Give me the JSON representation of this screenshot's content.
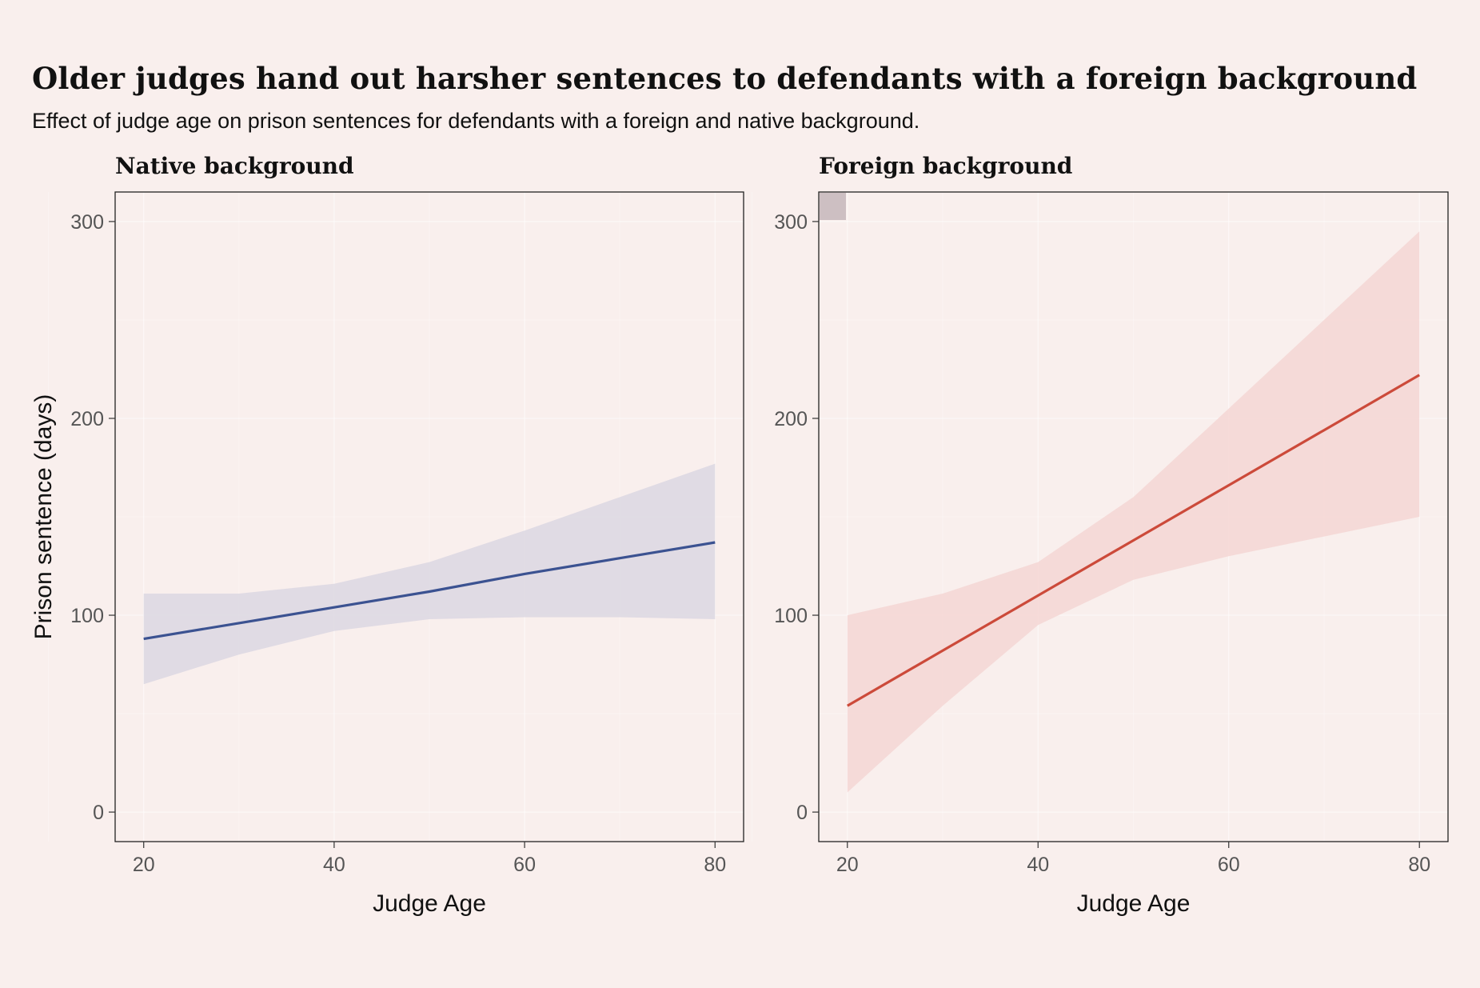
{
  "title": "Older judges hand out harsher sentences to defendants with a foreign background",
  "subtitle": "Effect of judge age on prison sentences for defendants with a foreign and native background.",
  "colors": {
    "background": "#f9efed",
    "native_line": "#3b5291",
    "native_band": "#dcd7e2",
    "foreign_line": "#cc4a3a",
    "foreign_band": "#f4d6d3"
  },
  "chart_data": [
    {
      "type": "line",
      "title": "Native background",
      "xlabel": "Judge Age",
      "ylabel": "Prison sentence (days)",
      "xlim": [
        17,
        83
      ],
      "ylim": [
        -15,
        315
      ],
      "x_ticks": [
        20,
        40,
        60,
        80
      ],
      "y_ticks": [
        0,
        100,
        200,
        300
      ],
      "grid": true,
      "series": [
        {
          "x": [
            20,
            30,
            40,
            50,
            60,
            70,
            80
          ],
          "y": [
            88,
            96,
            104,
            112,
            121,
            129,
            137
          ],
          "lower": [
            65,
            80,
            92,
            98,
            99,
            99,
            98
          ],
          "upper": [
            111,
            111,
            116,
            127,
            143,
            160,
            177
          ]
        }
      ]
    },
    {
      "type": "line",
      "title": "Foreign background",
      "xlabel": "Judge Age",
      "ylabel": "",
      "xlim": [
        17,
        83
      ],
      "ylim": [
        -15,
        315
      ],
      "x_ticks": [
        20,
        40,
        60,
        80
      ],
      "y_ticks": [
        0,
        100,
        200,
        300
      ],
      "grid": true,
      "series": [
        {
          "x": [
            20,
            30,
            40,
            50,
            60,
            70,
            80
          ],
          "y": [
            54,
            82,
            110,
            138,
            166,
            194,
            222
          ],
          "lower": [
            10,
            54,
            95,
            118,
            130,
            140,
            150
          ],
          "upper": [
            100,
            111,
            127,
            160,
            205,
            250,
            295
          ]
        }
      ]
    }
  ]
}
